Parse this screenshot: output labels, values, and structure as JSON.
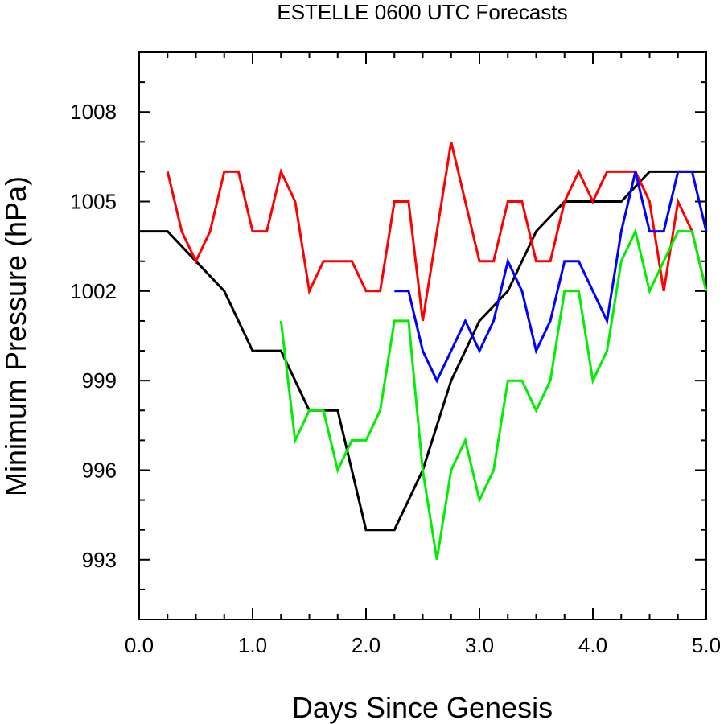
{
  "chart_data": {
    "type": "line",
    "title": "ESTELLE 0600 UTC Forecasts",
    "xlabel": "Days Since Genesis",
    "ylabel": "Minimum Pressure (hPa)",
    "xlim": [
      0,
      5
    ],
    "ylim": [
      991,
      1010
    ],
    "x_ticks": [
      0,
      1,
      2,
      3,
      4,
      5
    ],
    "x_tick_labels": [
      "0.0",
      "1.0",
      "2.0",
      "3.0",
      "4.0",
      "5.0"
    ],
    "y_ticks": [
      993,
      996,
      999,
      1002,
      1005,
      1008
    ],
    "y_tick_labels": [
      "993",
      "996",
      "999",
      "1002",
      "1005",
      "1008"
    ],
    "grid": false,
    "series": [
      {
        "color": "#000000",
        "points": [
          [
            0,
            1004
          ],
          [
            0.25,
            1004
          ],
          [
            0.5,
            1003
          ],
          [
            0.75,
            1002
          ],
          [
            1.0,
            1000
          ],
          [
            1.25,
            1000
          ],
          [
            1.5,
            998
          ],
          [
            1.75,
            998
          ],
          [
            2.0,
            994
          ],
          [
            2.25,
            994
          ],
          [
            2.5,
            996
          ],
          [
            2.75,
            999
          ],
          [
            3.0,
            1001
          ],
          [
            3.25,
            1002
          ],
          [
            3.5,
            1004
          ],
          [
            3.75,
            1005
          ],
          [
            4.0,
            1005
          ],
          [
            4.25,
            1005
          ],
          [
            4.5,
            1006
          ],
          [
            4.75,
            1006
          ],
          [
            5.0,
            1006
          ]
        ]
      },
      {
        "color": "#ff0000",
        "points": [
          [
            0.25,
            1006
          ],
          [
            0.375,
            1004
          ],
          [
            0.5,
            1003
          ],
          [
            0.625,
            1004
          ],
          [
            0.75,
            1006
          ],
          [
            0.875,
            1006
          ],
          [
            1.0,
            1004
          ],
          [
            1.125,
            1004
          ],
          [
            1.25,
            1006
          ],
          [
            1.375,
            1005
          ],
          [
            1.5,
            1002
          ],
          [
            1.625,
            1003
          ],
          [
            1.75,
            1003
          ],
          [
            1.875,
            1003
          ],
          [
            2.0,
            1002
          ],
          [
            2.125,
            1002
          ],
          [
            2.25,
            1005
          ],
          [
            2.375,
            1005
          ],
          [
            2.5,
            1001
          ],
          [
            2.75,
            1007
          ],
          [
            3.0,
            1003
          ],
          [
            3.125,
            1003
          ],
          [
            3.25,
            1005
          ],
          [
            3.375,
            1005
          ],
          [
            3.5,
            1003
          ],
          [
            3.625,
            1003
          ],
          [
            3.75,
            1005
          ],
          [
            3.875,
            1006
          ],
          [
            4.0,
            1005
          ],
          [
            4.125,
            1006
          ],
          [
            4.25,
            1006
          ],
          [
            4.375,
            1006
          ],
          [
            4.5,
            1005
          ],
          [
            4.625,
            1002
          ],
          [
            4.75,
            1005
          ],
          [
            4.875,
            1004
          ],
          [
            5.0,
            1002
          ]
        ]
      },
      {
        "color": "#0000ff",
        "points": [
          [
            2.25,
            1002
          ],
          [
            2.375,
            1002
          ],
          [
            2.5,
            1000
          ],
          [
            2.625,
            999
          ],
          [
            2.75,
            1000
          ],
          [
            2.875,
            1001
          ],
          [
            3.0,
            1000
          ],
          [
            3.125,
            1001
          ],
          [
            3.25,
            1003
          ],
          [
            3.375,
            1002
          ],
          [
            3.5,
            1000
          ],
          [
            3.625,
            1001
          ],
          [
            3.75,
            1003
          ],
          [
            3.875,
            1003
          ],
          [
            4.0,
            1002
          ],
          [
            4.125,
            1001
          ],
          [
            4.25,
            1004
          ],
          [
            4.375,
            1006
          ],
          [
            4.5,
            1004
          ],
          [
            4.625,
            1004
          ],
          [
            4.75,
            1006
          ],
          [
            4.875,
            1006
          ],
          [
            5.0,
            1004
          ]
        ]
      },
      {
        "color": "#00ee00",
        "points": [
          [
            1.25,
            1001
          ],
          [
            1.375,
            997
          ],
          [
            1.5,
            998
          ],
          [
            1.625,
            998
          ],
          [
            1.75,
            996
          ],
          [
            1.875,
            997
          ],
          [
            2.0,
            997
          ],
          [
            2.125,
            998
          ],
          [
            2.25,
            1001
          ],
          [
            2.375,
            1001
          ],
          [
            2.5,
            996
          ],
          [
            2.625,
            993
          ],
          [
            2.75,
            996
          ],
          [
            2.875,
            997
          ],
          [
            3.0,
            995
          ],
          [
            3.125,
            996
          ],
          [
            3.25,
            999
          ],
          [
            3.375,
            999
          ],
          [
            3.5,
            998
          ],
          [
            3.625,
            999
          ],
          [
            3.75,
            1002
          ],
          [
            3.875,
            1002
          ],
          [
            4.0,
            999
          ],
          [
            4.125,
            1000
          ],
          [
            4.25,
            1003
          ],
          [
            4.375,
            1004
          ],
          [
            4.5,
            1002
          ],
          [
            4.625,
            1003
          ],
          [
            4.75,
            1004
          ],
          [
            4.875,
            1004
          ],
          [
            5.0,
            1002
          ]
        ]
      }
    ]
  }
}
